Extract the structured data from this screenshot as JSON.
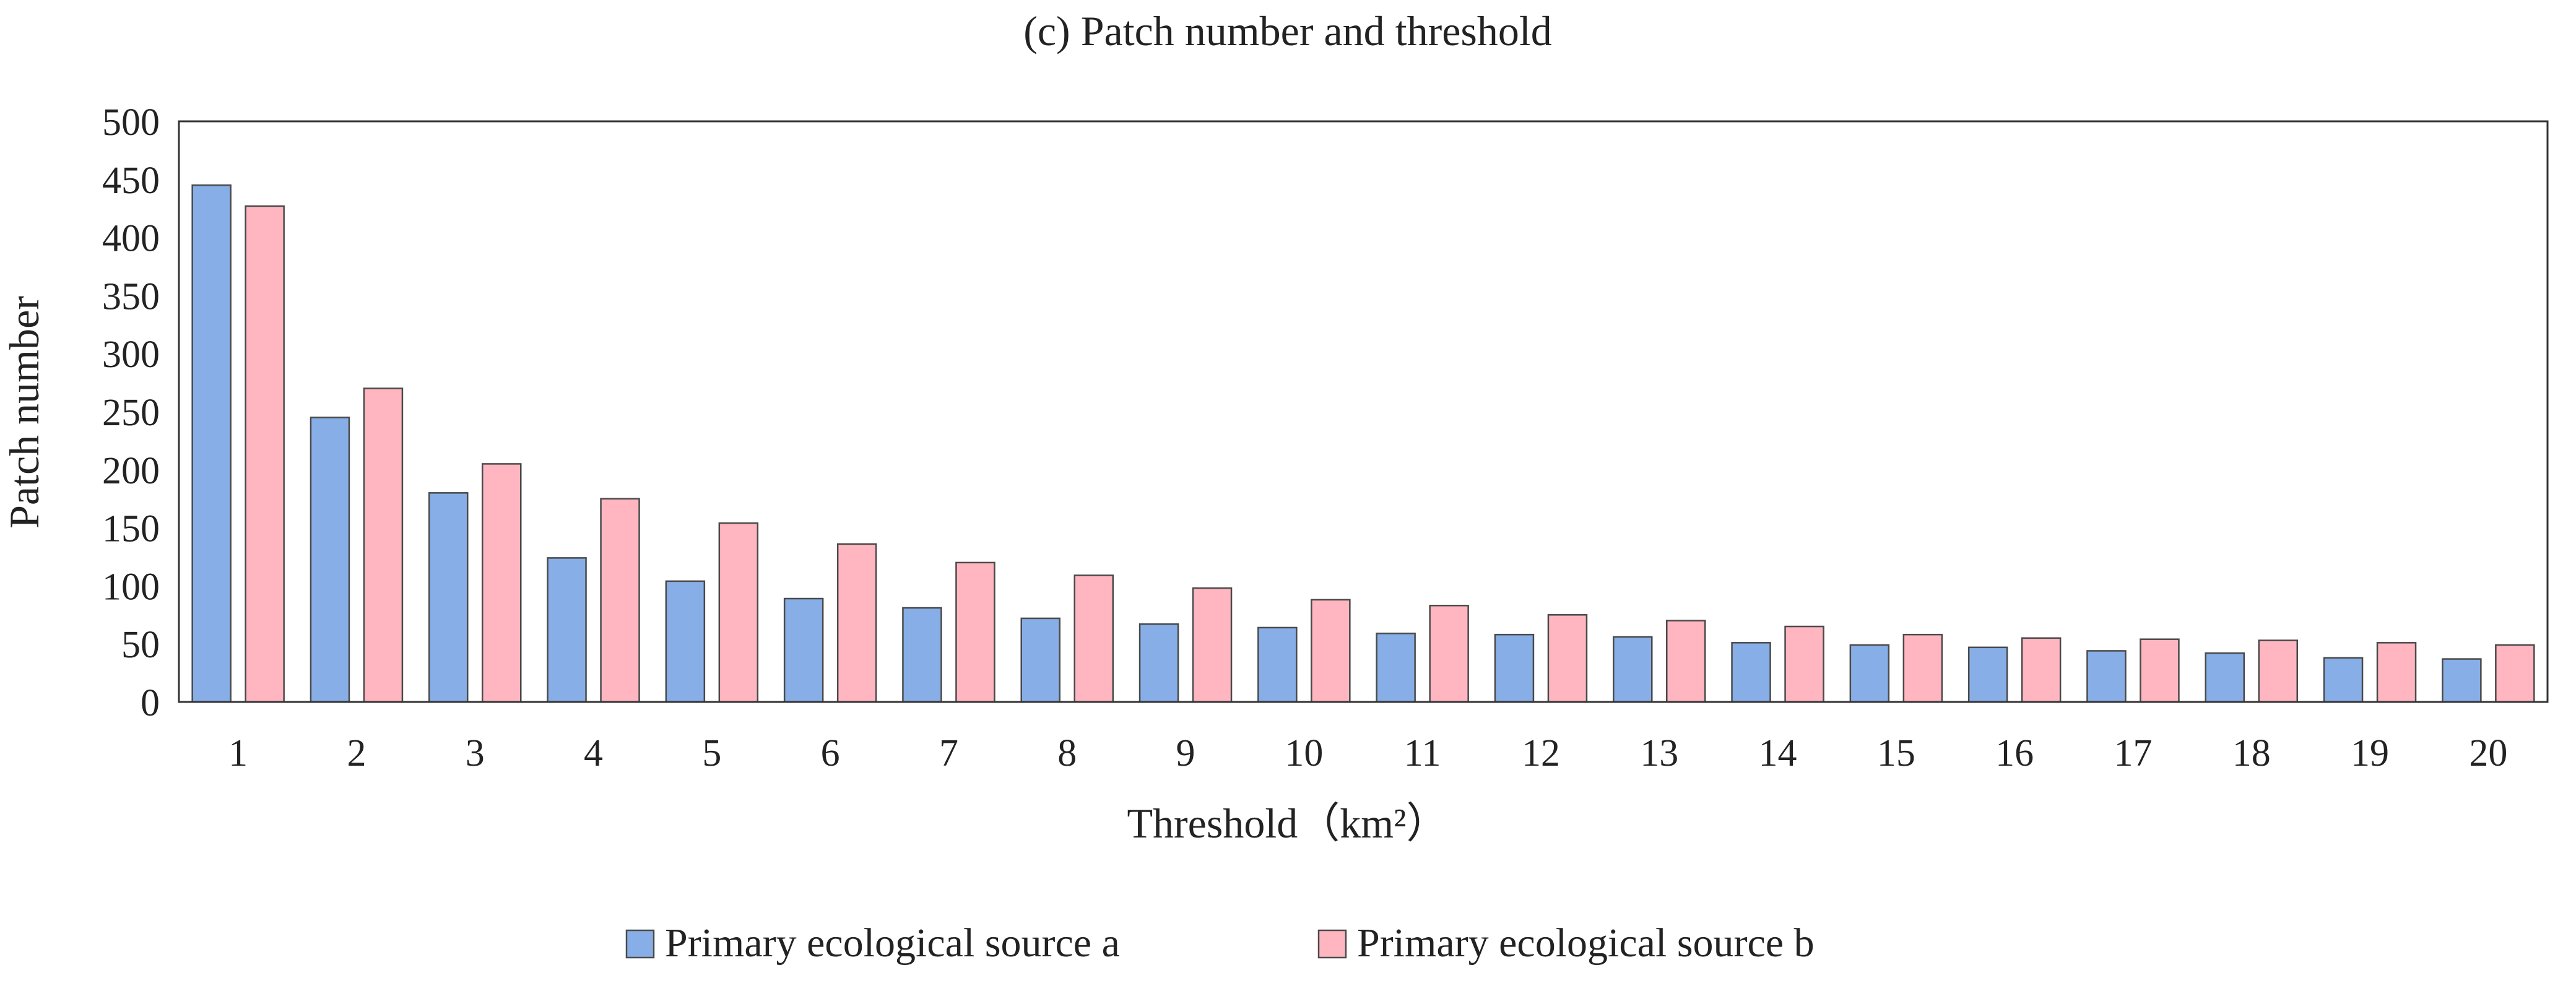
{
  "chart_data": {
    "type": "bar",
    "title": "(c) Patch number and threshold",
    "xlabel": "Threshold（km²）",
    "ylabel": "Patch number",
    "ylim": [
      0,
      500
    ],
    "yticks": [
      "0",
      "50",
      "100",
      "150",
      "200",
      "250",
      "300",
      "350",
      "400",
      "450",
      "500"
    ],
    "categories": [
      "1",
      "2",
      "3",
      "4",
      "5",
      "6",
      "7",
      "8",
      "9",
      "10",
      "11",
      "12",
      "13",
      "14",
      "15",
      "16",
      "17",
      "18",
      "19",
      "20"
    ],
    "series": [
      {
        "name": "Primary ecological source a",
        "color": "#87aee6",
        "values": [
          445,
          245,
          180,
          124,
          104,
          89,
          81,
          72,
          67,
          64,
          59,
          58,
          56,
          51,
          49,
          47,
          44,
          42,
          38,
          37
        ]
      },
      {
        "name": "Primary ecological source b",
        "color": "#ffb6c1",
        "values": [
          427,
          270,
          205,
          175,
          154,
          136,
          120,
          109,
          98,
          88,
          83,
          75,
          70,
          65,
          58,
          55,
          54,
          53,
          51,
          49
        ]
      }
    ],
    "grid": false,
    "legend_position": "bottom"
  }
}
